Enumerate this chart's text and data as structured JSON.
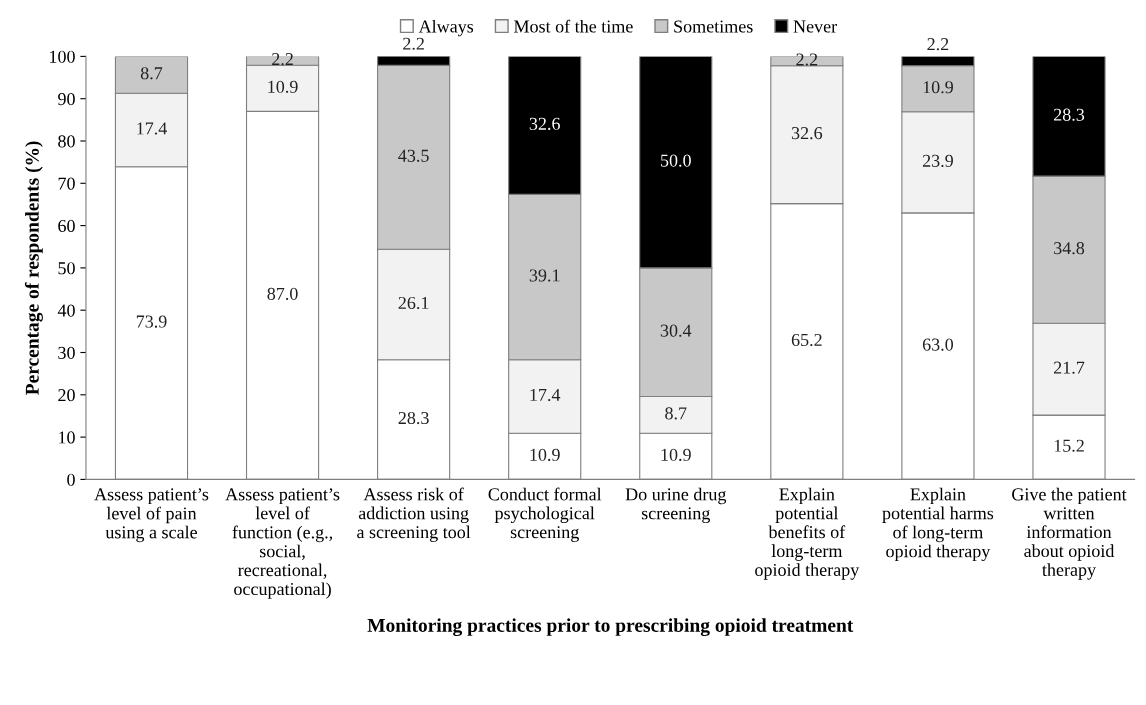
{
  "chart_data": {
    "type": "bar",
    "stacked": true,
    "xlabel": "Monitoring practices prior to prescribing opioid treatment",
    "ylabel": "Percentage of respondents (%)",
    "categories": [
      "Assess patient’s\nlevel of pain\nusing a scale",
      "Assess patient’s\nlevel of\nfunction (e.g.,\nsocial,\nrecreational,\noccupational)",
      "Assess risk of\naddiction using\na screening tool",
      "Conduct formal\npsychological\nscreening",
      "Do urine drug\nscreening",
      "Explain\npotential\nbenefits of\nlong-term\nopioid therapy",
      "Explain\npotential harms\nof long-term\nopioid therapy",
      "Give the patient\nwritten\ninformation\nabout opioid\ntherapy"
    ],
    "series": [
      {
        "name": "Always",
        "color": "#ffffff",
        "values": [
          73.9,
          87.0,
          28.3,
          10.9,
          10.9,
          65.2,
          63.0,
          15.2
        ],
        "value_labels": [
          "73.9",
          "87.0",
          "28.3",
          "10.9",
          "10.9",
          "65.2",
          "63.0",
          "15.2"
        ]
      },
      {
        "name": "Most of the time",
        "color": "#f2f2f2",
        "values": [
          17.4,
          10.9,
          26.1,
          17.4,
          8.7,
          32.6,
          23.9,
          21.7
        ],
        "value_labels": [
          "17.4",
          "10.9",
          "26.1",
          "17.4",
          "8.7",
          "32.6",
          "23.9",
          "21.7"
        ]
      },
      {
        "name": "Sometimes",
        "color": "#c8c8c8",
        "values": [
          8.7,
          2.2,
          43.5,
          39.1,
          30.4,
          2.2,
          10.9,
          34.8
        ],
        "value_labels": [
          "8.7",
          "2.2",
          "43.5",
          "39.1",
          "30.4",
          "2.2",
          "10.9",
          "34.8"
        ]
      },
      {
        "name": "Never",
        "color": "#000000",
        "values": [
          0,
          0,
          2.2,
          32.6,
          50.0,
          0,
          2.2,
          28.3
        ],
        "value_labels": [
          null,
          null,
          "2.2",
          "32.6",
          "50.0",
          null,
          "2.2",
          "28.3"
        ]
      }
    ],
    "ylim": [
      0,
      100
    ],
    "yticks": [
      0,
      10,
      20,
      30,
      40,
      50,
      60,
      70,
      80,
      90,
      100
    ],
    "grid": false,
    "legend": "top"
  }
}
